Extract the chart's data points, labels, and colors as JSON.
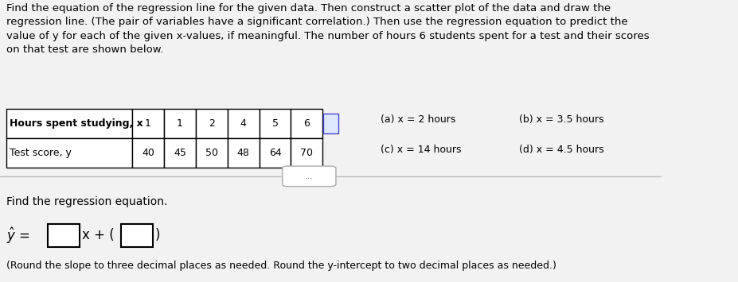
{
  "title_text": "Find the equation of the regression line for the given data. Then construct a scatter plot of the data and draw the\nregression line. (The pair of variables have a significant correlation.) Then use the regression equation to predict the\nvalue of y for each of the given x-values, if meaningful. The number of hours 6 students spent for a test and their scores\non that test are shown below.",
  "table_header": [
    "Hours spent studying, x",
    "1",
    "1",
    "2",
    "4",
    "5",
    "6"
  ],
  "table_row": [
    "Test score, y",
    "40",
    "45",
    "50",
    "48",
    "64",
    "70"
  ],
  "side_labels_col1": [
    "(a) x = 2 hours",
    "(c) x = 14 hours"
  ],
  "side_labels_col2": [
    "(b) x = 3.5 hours",
    "(d) x = 4.5 hours"
  ],
  "section_label": "Find the regression equation.",
  "note_line": "(Round the slope to three decimal places as needed. Round the y-intercept to two decimal places as needed.)",
  "divider_button_text": "...",
  "bg_color": "#f0f0f0",
  "text_color": "#000000",
  "font_size_body": 9.5,
  "font_size_table": 9.0,
  "font_size_equation": 12,
  "font_size_note": 9.0
}
